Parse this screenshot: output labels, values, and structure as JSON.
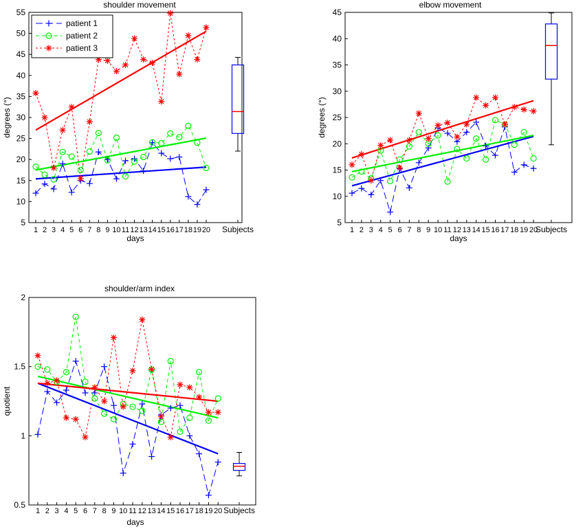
{
  "figure": {
    "shoulder_title": "shoulder movement",
    "elbow_title": "elbow movement",
    "index_title": "shoulder/arm index"
  },
  "colors": {
    "patient1": "#0000ff",
    "patient2": "#00ee00",
    "patient3": "#ff0000",
    "box": "#0000ff",
    "median": "#ff0000"
  },
  "legend": [
    "patient 1",
    "patient 2",
    "patient 3"
  ],
  "chart_data": [
    {
      "id": "shoulder",
      "type": "line",
      "title": "shoulder movement",
      "xlabel": "days",
      "ylabel": "degrees (°)",
      "ylim": [
        5,
        55
      ],
      "yticks": [
        5,
        10,
        15,
        20,
        25,
        30,
        35,
        40,
        45,
        50,
        55
      ],
      "categories": [
        "1",
        "2",
        "3",
        "4",
        "5",
        "6",
        "7",
        "8",
        "9",
        "10",
        "11",
        "12",
        "13",
        "14",
        "15",
        "16",
        "17",
        "18",
        "19",
        "20"
      ],
      "extra_category": "Subjects",
      "legend_position": "top-left",
      "series": [
        {
          "name": "patient 1",
          "marker": "+",
          "values": [
            12,
            14.2,
            13,
            19,
            12.2,
            15,
            14.3,
            21.8,
            20,
            15.4,
            19.7,
            20.2,
            17.3,
            24,
            21.5,
            20.2,
            20.6,
            11.2,
            9.3,
            12.8
          ],
          "trend": [
            15.4,
            18.2
          ]
        },
        {
          "name": "patient 2",
          "marker": "o",
          "values": [
            18.3,
            16.4,
            15.3,
            21.8,
            20.7,
            17.5,
            21.9,
            26.3,
            19.8,
            25.2,
            16,
            19.5,
            20.6,
            24.1,
            23.9,
            26.2,
            25.3,
            28,
            24,
            18
          ],
          "trend": [
            17.5,
            25.1
          ]
        },
        {
          "name": "patient 3",
          "marker": "*",
          "values": [
            35.8,
            30,
            18,
            27,
            32.5,
            15.5,
            29,
            43.8,
            43.5,
            41,
            42.5,
            48.8,
            43.8,
            43,
            33.8,
            54.8,
            40.3,
            49.5,
            43.8,
            51.4
          ],
          "trend": [
            27,
            50.5
          ]
        }
      ],
      "boxplot": {
        "label": "Subjects",
        "whisker_low": 22,
        "q1": 26.2,
        "median": 31.4,
        "q3": 42.5,
        "whisker_high": 44.3
      }
    },
    {
      "id": "elbow",
      "type": "line",
      "title": "elbow movement",
      "xlabel": "days",
      "ylabel": "degrees (°)",
      "ylim": [
        5,
        45
      ],
      "yticks": [
        5,
        10,
        15,
        20,
        25,
        30,
        35,
        40,
        45
      ],
      "categories": [
        "1",
        "2",
        "3",
        "4",
        "5",
        "6",
        "7",
        "8",
        "9",
        "10",
        "11",
        "12",
        "13",
        "14",
        "15",
        "16",
        "17",
        "18",
        "19",
        "20"
      ],
      "extra_category": "Subjects",
      "series": [
        {
          "name": "patient 1",
          "marker": "+",
          "values": [
            10.6,
            11.5,
            10.3,
            13,
            7,
            15.3,
            11.6,
            16.4,
            19.2,
            23,
            22,
            20.4,
            22.2,
            24.1,
            19.6,
            17.8,
            23.2,
            14.6,
            16,
            15.3
          ],
          "trend": [
            12,
            21.4
          ]
        },
        {
          "name": "patient 2",
          "marker": "o",
          "values": [
            13.6,
            14.7,
            13.4,
            18.7,
            12.9,
            17,
            19.5,
            22.2,
            20,
            21.6,
            12.8,
            19,
            17.2,
            21,
            17,
            24.5,
            23.7,
            19.8,
            22.2,
            17.2
          ],
          "trend": [
            14.7,
            21.6
          ]
        },
        {
          "name": "patient 3",
          "marker": "*",
          "values": [
            16,
            18,
            13,
            19.7,
            20.7,
            15.4,
            20.7,
            25.8,
            21,
            23.5,
            24,
            21.3,
            23.7,
            28.8,
            27.3,
            28.8,
            23.7,
            27,
            26.5,
            26.2
          ],
          "trend": [
            17.3,
            28.2
          ]
        }
      ],
      "boxplot": {
        "label": "Subjects",
        "whisker_low": 19.8,
        "q1": 32.3,
        "median": 38.7,
        "q3": 42.8,
        "whisker_high": 44.9
      }
    },
    {
      "id": "index",
      "type": "line",
      "title": "shoulder/arm index",
      "xlabel": "days",
      "ylabel": "quotient",
      "ylim": [
        0.5,
        2
      ],
      "yticks": [
        0.5,
        1,
        1.5,
        2
      ],
      "categories": [
        "1",
        "2",
        "3",
        "4",
        "5",
        "6",
        "7",
        "8",
        "9",
        "10",
        "11",
        "12",
        "13",
        "14",
        "15",
        "16",
        "17",
        "18",
        "19",
        "20"
      ],
      "extra_category": "Subjects",
      "series": [
        {
          "name": "patient 1",
          "marker": "+",
          "values": [
            1.01,
            1.32,
            1.24,
            1.33,
            1.54,
            1.31,
            1.31,
            1.5,
            1.22,
            0.73,
            0.94,
            1.23,
            0.85,
            1.15,
            1.2,
            1.22,
            1.0,
            0.87,
            0.57,
            0.81
          ],
          "trend": [
            1.38,
            0.87
          ]
        },
        {
          "name": "patient 2",
          "marker": "o",
          "values": [
            1.5,
            1.48,
            1.39,
            1.46,
            1.86,
            1.39,
            1.27,
            1.16,
            1.12,
            1.23,
            1.21,
            1.18,
            1.48,
            1.1,
            1.54,
            1.03,
            1.13,
            1.46,
            1.11,
            1.27
          ],
          "trend": [
            1.43,
            1.13
          ]
        },
        {
          "name": "patient 3",
          "marker": "*",
          "values": [
            1.58,
            1.38,
            1.4,
            1.13,
            1.12,
            0.99,
            1.35,
            1.25,
            1.71,
            1.21,
            1.47,
            1.84,
            1.48,
            1.14,
            0.99,
            1.37,
            1.35,
            1.28,
            1.17,
            1.17
          ],
          "trend": [
            1.38,
            1.25
          ]
        }
      ],
      "boxplot": {
        "label": "Subjects",
        "whisker_low": 0.71,
        "q1": 0.75,
        "median": 0.78,
        "q3": 0.8,
        "whisker_high": 0.88
      }
    }
  ]
}
